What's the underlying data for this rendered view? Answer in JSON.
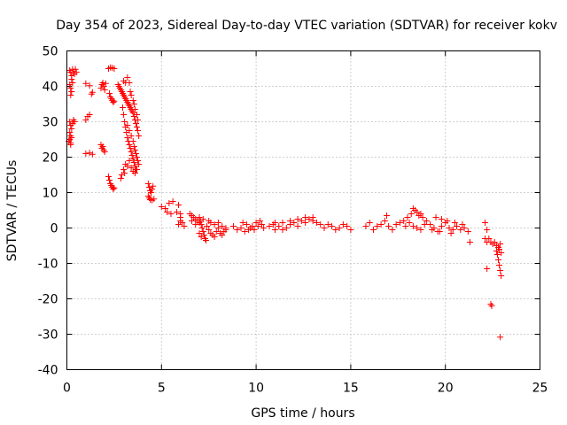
{
  "chart_data": {
    "type": "scatter",
    "title": "Day 354 of 2023, Sidereal Day-to-day VTEC variation (SDTVAR) for receiver kokv",
    "xlabel": "GPS time / hours",
    "ylabel": "SDTVAR / TECUs",
    "xlim": [
      0,
      25
    ],
    "ylim": [
      -40,
      50
    ],
    "xticks": [
      0,
      5,
      10,
      15,
      20,
      25
    ],
    "yticks": [
      -40,
      -30,
      -20,
      -10,
      0,
      10,
      20,
      30,
      40,
      50
    ],
    "grid": true,
    "marker": "plus",
    "colors": {
      "series": "#ff0000",
      "axes": "#000000",
      "grid": "#a0a0a0"
    },
    "series": [
      {
        "name": "SDTVAR",
        "points": [
          [
            0.15,
            44.5
          ],
          [
            0.2,
            44.0
          ],
          [
            0.25,
            43.0
          ],
          [
            0.3,
            44.8
          ],
          [
            0.35,
            44.0
          ],
          [
            0.4,
            43.5
          ],
          [
            0.45,
            44.8
          ],
          [
            0.5,
            44.0
          ],
          [
            0.15,
            40.5
          ],
          [
            0.2,
            39.5
          ],
          [
            0.25,
            38.5
          ],
          [
            0.2,
            37.5
          ],
          [
            0.3,
            41.0
          ],
          [
            0.25,
            42.0
          ],
          [
            0.15,
            30.0
          ],
          [
            0.2,
            29.0
          ],
          [
            0.25,
            28.0
          ],
          [
            0.3,
            29.5
          ],
          [
            0.35,
            30.5
          ],
          [
            0.4,
            30.0
          ],
          [
            0.15,
            27.0
          ],
          [
            0.2,
            26.0
          ],
          [
            0.15,
            25.0
          ],
          [
            0.2,
            24.0
          ],
          [
            0.25,
            25.5
          ],
          [
            0.1,
            24.5
          ],
          [
            0.2,
            23.5
          ],
          [
            1.0,
            40.8
          ],
          [
            1.2,
            40.2
          ],
          [
            1.3,
            37.8
          ],
          [
            1.35,
            38.3
          ],
          [
            1.1,
            31.5
          ],
          [
            1.0,
            30.5
          ],
          [
            1.2,
            32.0
          ],
          [
            1.0,
            21.0
          ],
          [
            1.2,
            21.2
          ],
          [
            1.35,
            20.8
          ],
          [
            1.8,
            39.5
          ],
          [
            1.85,
            40.5
          ],
          [
            1.9,
            41.0
          ],
          [
            1.95,
            40.0
          ],
          [
            2.0,
            39.0
          ],
          [
            2.05,
            40.8
          ],
          [
            1.8,
            23.5
          ],
          [
            1.85,
            22.5
          ],
          [
            1.9,
            23.0
          ],
          [
            1.95,
            22.0
          ],
          [
            2.0,
            21.5
          ],
          [
            2.2,
            45.0
          ],
          [
            2.3,
            45.3
          ],
          [
            2.4,
            45.2
          ],
          [
            2.5,
            45.0
          ],
          [
            2.25,
            38.0
          ],
          [
            2.3,
            37.0
          ],
          [
            2.35,
            36.5
          ],
          [
            2.4,
            36.0
          ],
          [
            2.45,
            35.5
          ],
          [
            2.5,
            35.8
          ],
          [
            2.2,
            14.5
          ],
          [
            2.25,
            13.5
          ],
          [
            2.3,
            12.5
          ],
          [
            2.35,
            12.0
          ],
          [
            2.4,
            11.5
          ],
          [
            2.45,
            11.0
          ],
          [
            2.5,
            11.3
          ],
          [
            2.7,
            40.5
          ],
          [
            2.75,
            40.0
          ],
          [
            2.8,
            39.5
          ],
          [
            2.85,
            39.0
          ],
          [
            2.9,
            38.5
          ],
          [
            2.95,
            38.0
          ],
          [
            3.0,
            37.5
          ],
          [
            3.05,
            37.0
          ],
          [
            3.1,
            36.5
          ],
          [
            3.15,
            36.0
          ],
          [
            3.2,
            35.5
          ],
          [
            3.25,
            35.0
          ],
          [
            3.3,
            34.5
          ],
          [
            3.35,
            34.0
          ],
          [
            3.4,
            33.5
          ],
          [
            3.45,
            33.0
          ],
          [
            3.5,
            32.5
          ],
          [
            3.55,
            31.5
          ],
          [
            3.6,
            30.5
          ],
          [
            3.65,
            29.5
          ],
          [
            3.7,
            28.5
          ],
          [
            3.75,
            27.5
          ],
          [
            3.8,
            26.0
          ],
          [
            3.0,
            41.5
          ],
          [
            3.1,
            41.0
          ],
          [
            3.2,
            42.5
          ],
          [
            3.3,
            41.0
          ],
          [
            3.35,
            38.5
          ],
          [
            3.4,
            37.5
          ],
          [
            3.5,
            36.0
          ],
          [
            3.55,
            35.0
          ],
          [
            3.6,
            33.5
          ],
          [
            3.7,
            32.0
          ],
          [
            3.75,
            30.5
          ],
          [
            2.95,
            34.0
          ],
          [
            3.0,
            32.0
          ],
          [
            3.05,
            30.0
          ],
          [
            3.1,
            28.5
          ],
          [
            3.15,
            27.0
          ],
          [
            3.2,
            25.5
          ],
          [
            3.25,
            24.5
          ],
          [
            3.3,
            23.5
          ],
          [
            3.35,
            22.5
          ],
          [
            3.4,
            21.5
          ],
          [
            3.45,
            20.5
          ],
          [
            3.5,
            19.5
          ],
          [
            3.55,
            18.5
          ],
          [
            3.6,
            17.5
          ],
          [
            3.65,
            16.5
          ],
          [
            3.2,
            29.0
          ],
          [
            3.3,
            27.5
          ],
          [
            3.4,
            26.0
          ],
          [
            3.5,
            24.5
          ],
          [
            3.55,
            23.0
          ],
          [
            3.6,
            22.0
          ],
          [
            3.65,
            21.0
          ],
          [
            3.7,
            20.0
          ],
          [
            3.75,
            19.0
          ],
          [
            3.8,
            18.0
          ],
          [
            3.1,
            18.0
          ],
          [
            3.0,
            16.5
          ],
          [
            2.9,
            15.0
          ],
          [
            2.85,
            14.0
          ],
          [
            3.05,
            15.5
          ],
          [
            3.2,
            17.5
          ],
          [
            3.3,
            19.0
          ],
          [
            3.4,
            17.0
          ],
          [
            3.5,
            16.0
          ],
          [
            3.6,
            15.5
          ],
          [
            3.7,
            16.5
          ],
          [
            4.3,
            12.5
          ],
          [
            4.35,
            11.5
          ],
          [
            4.4,
            10.5
          ],
          [
            4.45,
            10.0
          ],
          [
            4.5,
            11.0
          ],
          [
            4.55,
            11.8
          ],
          [
            4.3,
            9.0
          ],
          [
            4.35,
            8.5
          ],
          [
            4.4,
            8.0
          ],
          [
            4.5,
            7.8
          ],
          [
            4.6,
            8.2
          ],
          [
            5.0,
            6.0
          ],
          [
            5.2,
            5.5
          ],
          [
            5.4,
            7.0
          ],
          [
            5.6,
            7.5
          ],
          [
            5.3,
            4.5
          ],
          [
            5.5,
            4.0
          ],
          [
            5.8,
            4.5
          ],
          [
            5.9,
            6.5
          ],
          [
            6.0,
            4.0
          ],
          [
            6.0,
            3.0
          ],
          [
            6.0,
            2.0
          ],
          [
            6.1,
            1.5
          ],
          [
            6.2,
            0.5
          ],
          [
            5.9,
            1.0
          ],
          [
            6.5,
            4.0
          ],
          [
            6.6,
            3.5
          ],
          [
            6.7,
            3.0
          ],
          [
            6.8,
            2.5
          ],
          [
            6.9,
            2.0
          ],
          [
            7.0,
            1.5
          ],
          [
            6.6,
            2.0
          ],
          [
            6.8,
            1.0
          ],
          [
            7.0,
            3.0
          ],
          [
            7.05,
            2.0
          ],
          [
            7.1,
            1.0
          ],
          [
            7.15,
            0.0
          ],
          [
            7.2,
            -1.0
          ],
          [
            7.25,
            -2.0
          ],
          [
            7.3,
            -3.0
          ],
          [
            7.35,
            -3.5
          ],
          [
            7.1,
            -2.5
          ],
          [
            7.0,
            -1.5
          ],
          [
            7.2,
            2.5
          ],
          [
            7.4,
            0.5
          ],
          [
            7.5,
            -0.5
          ],
          [
            7.6,
            -1.5
          ],
          [
            7.7,
            -2.0
          ],
          [
            7.8,
            -2.5
          ],
          [
            7.9,
            -1.0
          ],
          [
            8.0,
            0.0
          ],
          [
            8.1,
            -1.5
          ],
          [
            8.2,
            -2.0
          ],
          [
            8.3,
            -1.0
          ],
          [
            8.4,
            0.0
          ],
          [
            7.5,
            2.0
          ],
          [
            7.6,
            1.5
          ],
          [
            7.8,
            1.0
          ],
          [
            8.0,
            1.5
          ],
          [
            8.2,
            0.5
          ],
          [
            8.4,
            -0.5
          ],
          [
            8.8,
            0.5
          ],
          [
            9.0,
            -0.5
          ],
          [
            9.2,
            0.0
          ],
          [
            9.4,
            -1.0
          ],
          [
            9.6,
            -0.5
          ],
          [
            9.8,
            0.5
          ],
          [
            10.0,
            1.5
          ],
          [
            10.2,
            2.0
          ],
          [
            10.3,
            1.0
          ],
          [
            10.4,
            0.0
          ],
          [
            9.3,
            1.5
          ],
          [
            9.5,
            1.0
          ],
          [
            9.7,
            0.0
          ],
          [
            9.9,
            -0.5
          ],
          [
            10.1,
            0.5
          ],
          [
            10.7,
            0.5
          ],
          [
            10.9,
            1.0
          ],
          [
            11.0,
            -0.5
          ],
          [
            11.2,
            0.5
          ],
          [
            11.4,
            -0.5
          ],
          [
            11.6,
            0.0
          ],
          [
            11.8,
            1.0
          ],
          [
            12.0,
            1.5
          ],
          [
            12.2,
            0.5
          ],
          [
            12.4,
            2.0
          ],
          [
            12.6,
            1.5
          ],
          [
            12.8,
            2.5
          ],
          [
            13.0,
            2.0
          ],
          [
            13.2,
            1.5
          ],
          [
            13.4,
            1.0
          ],
          [
            13.6,
            0.0
          ],
          [
            13.8,
            1.0
          ],
          [
            14.0,
            0.5
          ],
          [
            14.2,
            -0.5
          ],
          [
            14.4,
            0.0
          ],
          [
            14.6,
            1.0
          ],
          [
            14.8,
            0.5
          ],
          [
            15.0,
            -0.5
          ],
          [
            13.0,
            3.0
          ],
          [
            12.6,
            3.0
          ],
          [
            12.2,
            2.5
          ],
          [
            11.8,
            2.0
          ],
          [
            11.4,
            1.5
          ],
          [
            11.0,
            1.5
          ],
          [
            15.8,
            0.5
          ],
          [
            16.0,
            1.5
          ],
          [
            16.2,
            -0.5
          ],
          [
            16.4,
            0.5
          ],
          [
            16.6,
            1.0
          ],
          [
            16.8,
            2.0
          ],
          [
            17.0,
            0.5
          ],
          [
            17.2,
            -0.5
          ],
          [
            17.4,
            1.0
          ],
          [
            16.9,
            3.5
          ],
          [
            17.6,
            1.5
          ],
          [
            17.8,
            2.0
          ],
          [
            18.0,
            3.0
          ],
          [
            18.2,
            4.0
          ],
          [
            18.3,
            5.5
          ],
          [
            18.4,
            5.0
          ],
          [
            18.5,
            4.5
          ],
          [
            18.6,
            3.5
          ],
          [
            18.7,
            4.0
          ],
          [
            18.8,
            3.0
          ],
          [
            17.9,
            0.5
          ],
          [
            18.1,
            1.5
          ],
          [
            18.3,
            0.5
          ],
          [
            18.5,
            0.0
          ],
          [
            18.7,
            -0.5
          ],
          [
            18.9,
            1.0
          ],
          [
            19.0,
            2.0
          ],
          [
            19.2,
            1.0
          ],
          [
            19.4,
            0.0
          ],
          [
            19.6,
            -1.0
          ],
          [
            19.8,
            0.5
          ],
          [
            20.0,
            1.5
          ],
          [
            20.2,
            0.0
          ],
          [
            20.4,
            -0.5
          ],
          [
            20.6,
            0.5
          ],
          [
            20.8,
            -0.5
          ],
          [
            21.0,
            0.0
          ],
          [
            19.5,
            3.0
          ],
          [
            19.8,
            2.5
          ],
          [
            20.1,
            2.0
          ],
          [
            20.5,
            1.5
          ],
          [
            20.9,
            1.0
          ],
          [
            19.3,
            -0.5
          ],
          [
            19.7,
            -1.0
          ],
          [
            20.3,
            -1.5
          ],
          [
            21.2,
            -1.0
          ],
          [
            21.3,
            -4.0
          ],
          [
            22.1,
            1.5
          ],
          [
            22.2,
            -0.5
          ],
          [
            22.3,
            -3.0
          ],
          [
            22.4,
            -4.0
          ],
          [
            22.5,
            -4.5
          ],
          [
            22.6,
            -4.0
          ],
          [
            22.7,
            -5.0
          ],
          [
            22.1,
            -3.0
          ],
          [
            22.2,
            -4.0
          ],
          [
            22.7,
            -6.5
          ],
          [
            22.75,
            -7.5
          ],
          [
            22.8,
            -9.0
          ],
          [
            22.85,
            -10.5
          ],
          [
            22.9,
            -12.0
          ],
          [
            22.95,
            -13.5
          ],
          [
            22.8,
            -5.5
          ],
          [
            22.85,
            -6.0
          ],
          [
            22.9,
            -4.5
          ],
          [
            22.95,
            -7.0
          ],
          [
            22.2,
            -11.5
          ],
          [
            22.4,
            -21.5
          ],
          [
            22.45,
            -22.0
          ],
          [
            22.9,
            -30.8
          ]
        ]
      }
    ]
  }
}
